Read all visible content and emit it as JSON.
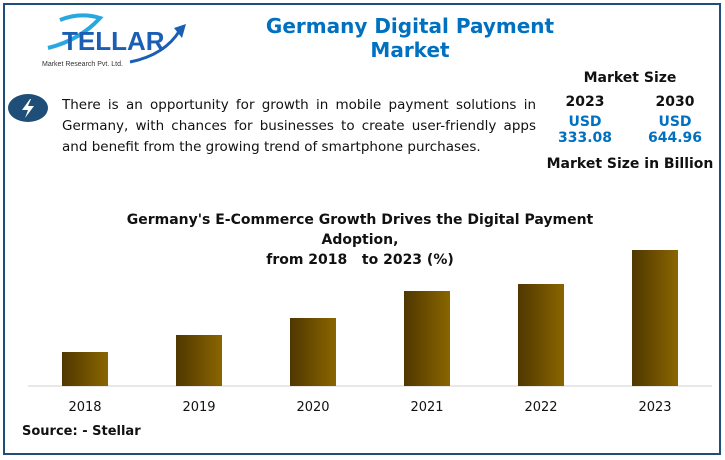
{
  "logo": {
    "text": "STELLAR",
    "subtitle": "Market Research Pvt. Ltd."
  },
  "header": {
    "title": "Germany Digital Payment Market"
  },
  "summary": {
    "icon": "lightning-bolt-icon",
    "text": "There is an opportunity for growth in mobile payment solutions in Germany, with chances for businesses to create user-friendly apps and benefit from the growing trend of smartphone purchases."
  },
  "market_size": {
    "heading": "Market Size",
    "years": [
      "2023",
      "2030"
    ],
    "values": [
      "USD 333.08",
      "USD 644.96"
    ],
    "unit_label": "Market Size in Billion"
  },
  "colors": {
    "accent": "#0070c0",
    "bar_dark": "#4f3800",
    "bar_light": "#8a6500",
    "border": "#1f4e79"
  },
  "chart_data": {
    "type": "bar",
    "title": "Germany's E-Commerce Growth Drives the Digital Payment Adoption,",
    "subtitle": "from 2018   to 2023 (%)",
    "categories": [
      "2018",
      "2019",
      "2020",
      "2021",
      "2022",
      "2023"
    ],
    "values": [
      34,
      51,
      68,
      95,
      102,
      136
    ],
    "ylim": [
      0,
      136
    ],
    "grid": false
  },
  "source": "Source: - Stellar"
}
